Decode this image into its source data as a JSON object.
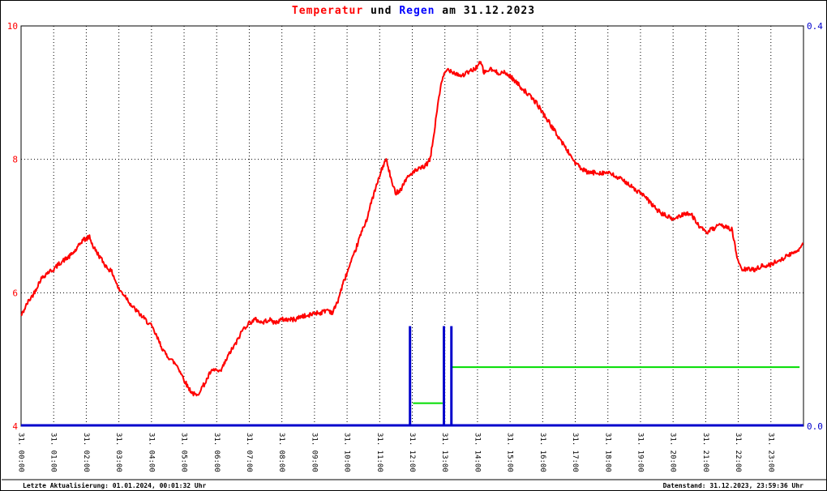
{
  "title": {
    "word_temperature": "Temperatur",
    "word_und": " und ",
    "word_rain": "Regen",
    "word_date": " am 31.12.2023"
  },
  "footer": {
    "last_update": "Letzte Aktualisierung: 01.01.2024, 00:01:32 Uhr",
    "data_state": "Datenstand: 31.12.2023, 23:59:36 Uhr"
  },
  "colors": {
    "temperature_line": "#ff0000",
    "rain_bars": "#0000cc",
    "green_line": "#00dd00",
    "left_axis_labels": "#ff0000",
    "right_axis_labels": "#0000cc",
    "x_axis_labels": "#000000",
    "grid": "#000000",
    "title_temperature": "#ff0000",
    "title_rain": "#0000ff"
  },
  "chart_data": {
    "type": "line",
    "title": "Temperatur und Regen am 31.12.2023",
    "grid": "dotted",
    "x_axis": {
      "min_hour": 0,
      "max_hour": 24,
      "labels": [
        "31. 00:00",
        "31. 01:00",
        "31. 02:00",
        "31. 03:00",
        "31. 04:00",
        "31. 05:00",
        "31. 06:00",
        "31. 07:00",
        "31. 08:00",
        "31. 09:00",
        "31. 10:00",
        "31. 11:00",
        "31. 12:00",
        "31. 13:00",
        "31. 14:00",
        "31. 15:00",
        "31. 16:00",
        "31. 17:00",
        "31. 18:00",
        "31. 19:00",
        "31. 20:00",
        "31. 21:00",
        "31. 22:00",
        "31. 23:00"
      ]
    },
    "left_axis": {
      "min": 4,
      "max": 10,
      "ticks": [
        {
          "text": "10",
          "value": 10
        },
        {
          "text": "8",
          "value": 8
        },
        {
          "text": "6",
          "value": 6
        },
        {
          "text": "4",
          "value": 4
        }
      ],
      "gridlines": [
        8,
        6
      ]
    },
    "right_axis": {
      "min": 0.0,
      "max": 0.4,
      "ticks": [
        {
          "text": "0.4",
          "value": 0.4
        },
        {
          "text": "0.0",
          "value": 0.0
        }
      ]
    },
    "temperature_series": {
      "name": "Temperatur",
      "type": "line",
      "color": "#ff0000",
      "points": [
        [
          0.0,
          5.65
        ],
        [
          0.2,
          5.85
        ],
        [
          0.4,
          6.0
        ],
        [
          0.6,
          6.2
        ],
        [
          0.8,
          6.3
        ],
        [
          1.0,
          6.35
        ],
        [
          1.2,
          6.45
        ],
        [
          1.5,
          6.55
        ],
        [
          1.7,
          6.65
        ],
        [
          1.9,
          6.8
        ],
        [
          2.0,
          6.8
        ],
        [
          2.1,
          6.85
        ],
        [
          2.2,
          6.7
        ],
        [
          2.4,
          6.55
        ],
        [
          2.6,
          6.4
        ],
        [
          2.8,
          6.3
        ],
        [
          3.0,
          6.05
        ],
        [
          3.2,
          5.95
        ],
        [
          3.4,
          5.8
        ],
        [
          3.6,
          5.7
        ],
        [
          3.8,
          5.6
        ],
        [
          4.0,
          5.5
        ],
        [
          4.2,
          5.3
        ],
        [
          4.4,
          5.1
        ],
        [
          4.6,
          5.0
        ],
        [
          4.8,
          4.9
        ],
        [
          5.0,
          4.7
        ],
        [
          5.1,
          4.6
        ],
        [
          5.25,
          4.5
        ],
        [
          5.4,
          4.45
        ],
        [
          5.5,
          4.55
        ],
        [
          5.65,
          4.65
        ],
        [
          5.8,
          4.8
        ],
        [
          5.95,
          4.85
        ],
        [
          6.1,
          4.8
        ],
        [
          6.25,
          4.95
        ],
        [
          6.4,
          5.1
        ],
        [
          6.6,
          5.25
        ],
        [
          6.8,
          5.45
        ],
        [
          7.0,
          5.55
        ],
        [
          7.2,
          5.6
        ],
        [
          7.4,
          5.55
        ],
        [
          7.6,
          5.6
        ],
        [
          7.8,
          5.55
        ],
        [
          8.0,
          5.6
        ],
        [
          8.2,
          5.6
        ],
        [
          8.4,
          5.6
        ],
        [
          8.6,
          5.65
        ],
        [
          8.8,
          5.65
        ],
        [
          9.0,
          5.7
        ],
        [
          9.2,
          5.7
        ],
        [
          9.4,
          5.75
        ],
        [
          9.55,
          5.7
        ],
        [
          9.7,
          5.85
        ],
        [
          9.85,
          6.1
        ],
        [
          10.0,
          6.3
        ],
        [
          10.2,
          6.55
        ],
        [
          10.4,
          6.85
        ],
        [
          10.6,
          7.1
        ],
        [
          10.8,
          7.45
        ],
        [
          11.0,
          7.75
        ],
        [
          11.1,
          7.9
        ],
        [
          11.2,
          8.0
        ],
        [
          11.3,
          7.8
        ],
        [
          11.4,
          7.6
        ],
        [
          11.5,
          7.5
        ],
        [
          11.65,
          7.55
        ],
        [
          11.8,
          7.7
        ],
        [
          12.0,
          7.8
        ],
        [
          12.2,
          7.85
        ],
        [
          12.4,
          7.9
        ],
        [
          12.55,
          8.0
        ],
        [
          12.7,
          8.5
        ],
        [
          12.8,
          8.9
        ],
        [
          12.9,
          9.15
        ],
        [
          13.0,
          9.3
        ],
        [
          13.1,
          9.35
        ],
        [
          13.3,
          9.3
        ],
        [
          13.5,
          9.25
        ],
        [
          13.7,
          9.3
        ],
        [
          13.9,
          9.35
        ],
        [
          14.0,
          9.4
        ],
        [
          14.1,
          9.45
        ],
        [
          14.2,
          9.3
        ],
        [
          14.4,
          9.35
        ],
        [
          14.6,
          9.3
        ],
        [
          14.8,
          9.3
        ],
        [
          15.0,
          9.25
        ],
        [
          15.2,
          9.15
        ],
        [
          15.4,
          9.05
        ],
        [
          15.6,
          8.95
        ],
        [
          15.8,
          8.85
        ],
        [
          16.0,
          8.7
        ],
        [
          16.2,
          8.55
        ],
        [
          16.4,
          8.4
        ],
        [
          16.6,
          8.25
        ],
        [
          16.8,
          8.1
        ],
        [
          17.0,
          7.95
        ],
        [
          17.2,
          7.85
        ],
        [
          17.4,
          7.8
        ],
        [
          17.6,
          7.8
        ],
        [
          17.8,
          7.8
        ],
        [
          18.0,
          7.8
        ],
        [
          18.2,
          7.75
        ],
        [
          18.4,
          7.7
        ],
        [
          18.6,
          7.65
        ],
        [
          18.8,
          7.55
        ],
        [
          19.0,
          7.5
        ],
        [
          19.2,
          7.4
        ],
        [
          19.4,
          7.3
        ],
        [
          19.6,
          7.2
        ],
        [
          19.8,
          7.15
        ],
        [
          20.0,
          7.1
        ],
        [
          20.2,
          7.15
        ],
        [
          20.4,
          7.2
        ],
        [
          20.6,
          7.15
        ],
        [
          20.8,
          7.0
        ],
        [
          21.0,
          6.9
        ],
        [
          21.2,
          6.95
        ],
        [
          21.4,
          7.0
        ],
        [
          21.6,
          7.0
        ],
        [
          21.8,
          6.95
        ],
        [
          21.9,
          6.7
        ],
        [
          22.0,
          6.45
        ],
        [
          22.1,
          6.35
        ],
        [
          22.3,
          6.35
        ],
        [
          22.5,
          6.35
        ],
        [
          22.7,
          6.4
        ],
        [
          22.9,
          6.4
        ],
        [
          23.1,
          6.45
        ],
        [
          23.3,
          6.5
        ],
        [
          23.5,
          6.55
        ],
        [
          23.7,
          6.6
        ],
        [
          23.85,
          6.65
        ],
        [
          23.98,
          6.75
        ]
      ]
    },
    "rain_series": {
      "name": "Regen",
      "type": "bar",
      "color": "#0000cc",
      "baseline_value": 0.0,
      "bars": [
        {
          "hour": 11.93,
          "value": 0.1
        },
        {
          "hour": 12.97,
          "value": 0.1
        },
        {
          "hour": 13.2,
          "value": 0.1
        }
      ]
    },
    "green_line_series": {
      "color": "#00dd00",
      "segments": [
        {
          "from_hour": 12.02,
          "to_hour": 12.93,
          "value": 0.023
        },
        {
          "from_hour": 13.23,
          "to_hour": 23.88,
          "value": 0.059
        }
      ],
      "vertical_step": {
        "hour": 13.2,
        "from_value": 0.03,
        "to_value": 0.059
      }
    }
  }
}
